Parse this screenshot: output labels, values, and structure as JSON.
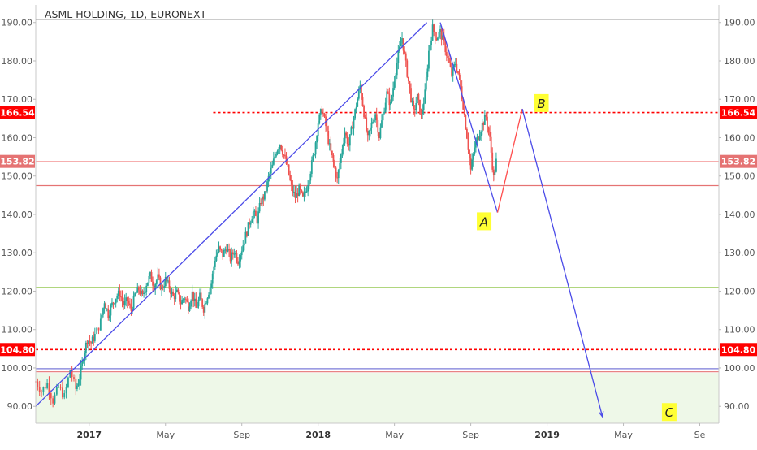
{
  "chart_data": {
    "type": "candlestick",
    "title": "ASML HOLDING, 1D, EURONEXT",
    "y_ticks": [
      90,
      100,
      110,
      120,
      130,
      140,
      150,
      160,
      170,
      180,
      190
    ],
    "y_tick_labels": [
      "90.00",
      "100.00",
      "110.00",
      "120.00",
      "130.00",
      "140.00",
      "150.00",
      "160.00",
      "170.00",
      "180.00",
      "190.00"
    ],
    "ylim": [
      85.6,
      194.6
    ],
    "x_ticks": [
      {
        "label": "2017",
        "t": 1.0,
        "bold": true
      },
      {
        "label": "May",
        "t": 5.0,
        "bold": false
      },
      {
        "label": "Sep",
        "t": 9.0,
        "bold": false
      },
      {
        "label": "2018",
        "t": 13.0,
        "bold": true
      },
      {
        "label": "May",
        "t": 17.0,
        "bold": false
      },
      {
        "label": "Sep",
        "t": 21.0,
        "bold": false
      },
      {
        "label": "2019",
        "t": 25.0,
        "bold": true
      },
      {
        "label": "May",
        "t": 29.0,
        "bold": false
      },
      {
        "label": "Se",
        "t": 33.0,
        "bold": false
      }
    ],
    "xlim": [
      -1.8,
      34.0
    ],
    "price_levels": [
      {
        "name": "level-166-54",
        "value": 166.54,
        "label": "166.54",
        "color": "#ff0000",
        "style": "dotted",
        "start_t": 7.5,
        "badge": "#ff0000"
      },
      {
        "name": "level-153-82",
        "value": 153.82,
        "label": "153.82",
        "color": "#f4a3a3",
        "style": "solid",
        "start_t": -1.8,
        "badge": "#e57373"
      },
      {
        "name": "level-147-5",
        "value": 147.5,
        "label": "",
        "color": "#e57373",
        "style": "solid",
        "start_t": -1.8,
        "badge": ""
      },
      {
        "name": "level-121",
        "value": 121.0,
        "label": "",
        "color": "#a5d16b",
        "style": "solid",
        "start_t": -1.8,
        "badge": ""
      },
      {
        "name": "level-104-80",
        "value": 104.8,
        "label": "104.80",
        "color": "#ff0000",
        "style": "dotted",
        "start_t": -1.8,
        "badge": "#ff0000"
      },
      {
        "name": "level-99-8",
        "value": 99.8,
        "label": "",
        "color": "#7b7bd8",
        "style": "solid",
        "start_t": -1.8,
        "badge": ""
      },
      {
        "name": "level-99-0",
        "value": 99.0,
        "label": "",
        "color": "#e57373",
        "style": "solid",
        "start_t": -1.8,
        "badge": ""
      }
    ],
    "support_zone": {
      "from": 85.6,
      "to": 98.7,
      "color": "#eef8e8"
    },
    "trendline": {
      "from": {
        "t": -1.8,
        "price": 90.0
      },
      "to": {
        "t": 18.7,
        "price": 190.0
      },
      "color": "#4b4be8"
    },
    "projection": [
      {
        "t": 19.4,
        "price": 190.0,
        "color": "#4b4be8"
      },
      {
        "t": 22.4,
        "price": 140.5,
        "color": "#4b4be8"
      },
      {
        "t": 23.7,
        "price": 167.5,
        "color": "#ff4d4d"
      },
      {
        "t": 27.9,
        "price": 87.3,
        "color": "#4b4be8",
        "arrow": true
      }
    ],
    "wave_labels": [
      {
        "text": "A",
        "t": 21.7,
        "price": 138.0
      },
      {
        "text": "B",
        "t": 24.7,
        "price": 168.8
      },
      {
        "text": "C",
        "t": 31.4,
        "price": 88.3
      }
    ],
    "candles": [
      {
        "t": -1.8,
        "price": 96.5
      },
      {
        "t": -1.5,
        "price": 94.0
      },
      {
        "t": -1.2,
        "price": 96.0
      },
      {
        "t": -0.9,
        "price": 91.5
      },
      {
        "t": -0.6,
        "price": 95.0
      },
      {
        "t": -0.3,
        "price": 92.5
      },
      {
        "t": 0.0,
        "price": 99.5
      },
      {
        "t": 0.3,
        "price": 94.5
      },
      {
        "t": 0.5,
        "price": 97.5
      },
      {
        "t": 0.7,
        "price": 103.0
      },
      {
        "t": 0.9,
        "price": 107.5
      },
      {
        "t": 1.1,
        "price": 106.5
      },
      {
        "t": 1.3,
        "price": 108.5
      },
      {
        "t": 1.6,
        "price": 112.0
      },
      {
        "t": 1.8,
        "price": 117.5
      },
      {
        "t": 2.0,
        "price": 114.0
      },
      {
        "t": 2.2,
        "price": 116.5
      },
      {
        "t": 2.4,
        "price": 118.5
      },
      {
        "t": 2.6,
        "price": 119.5
      },
      {
        "t": 2.8,
        "price": 116.5
      },
      {
        "t": 3.0,
        "price": 117.5
      },
      {
        "t": 3.2,
        "price": 115.0
      },
      {
        "t": 3.4,
        "price": 119.0
      },
      {
        "t": 3.6,
        "price": 120.5
      },
      {
        "t": 3.8,
        "price": 118.5
      },
      {
        "t": 4.0,
        "price": 122.0
      },
      {
        "t": 4.2,
        "price": 124.0
      },
      {
        "t": 4.4,
        "price": 121.5
      },
      {
        "t": 4.6,
        "price": 123.5
      },
      {
        "t": 4.8,
        "price": 120.5
      },
      {
        "t": 5.0,
        "price": 123.0
      },
      {
        "t": 5.2,
        "price": 121.0
      },
      {
        "t": 5.4,
        "price": 118.5
      },
      {
        "t": 5.6,
        "price": 119.5
      },
      {
        "t": 5.8,
        "price": 117.0
      },
      {
        "t": 6.0,
        "price": 118.5
      },
      {
        "t": 6.2,
        "price": 116.0
      },
      {
        "t": 6.4,
        "price": 119.5
      },
      {
        "t": 6.6,
        "price": 115.5
      },
      {
        "t": 6.8,
        "price": 118.5
      },
      {
        "t": 7.0,
        "price": 115.5
      },
      {
        "t": 7.2,
        "price": 119.0
      },
      {
        "t": 7.4,
        "price": 122.0
      },
      {
        "t": 7.6,
        "price": 128.5
      },
      {
        "t": 7.8,
        "price": 131.0
      },
      {
        "t": 8.0,
        "price": 129.5
      },
      {
        "t": 8.2,
        "price": 131.5
      },
      {
        "t": 8.4,
        "price": 128.5
      },
      {
        "t": 8.6,
        "price": 130.5
      },
      {
        "t": 8.8,
        "price": 128.0
      },
      {
        "t": 9.0,
        "price": 131.0
      },
      {
        "t": 9.2,
        "price": 134.5
      },
      {
        "t": 9.4,
        "price": 138.0
      },
      {
        "t": 9.6,
        "price": 140.5
      },
      {
        "t": 9.8,
        "price": 138.5
      },
      {
        "t": 10.0,
        "price": 143.5
      },
      {
        "t": 10.2,
        "price": 145.0
      },
      {
        "t": 10.4,
        "price": 149.5
      },
      {
        "t": 10.6,
        "price": 152.5
      },
      {
        "t": 10.8,
        "price": 156.5
      },
      {
        "t": 11.0,
        "price": 158.5
      },
      {
        "t": 11.2,
        "price": 155.5
      },
      {
        "t": 11.4,
        "price": 152.0
      },
      {
        "t": 11.6,
        "price": 147.0
      },
      {
        "t": 11.8,
        "price": 144.5
      },
      {
        "t": 12.0,
        "price": 146.5
      },
      {
        "t": 12.2,
        "price": 144.0
      },
      {
        "t": 12.4,
        "price": 147.0
      },
      {
        "t": 12.6,
        "price": 151.5
      },
      {
        "t": 12.8,
        "price": 156.5
      },
      {
        "t": 13.0,
        "price": 164.0
      },
      {
        "t": 13.2,
        "price": 167.5
      },
      {
        "t": 13.4,
        "price": 163.0
      },
      {
        "t": 13.6,
        "price": 157.5
      },
      {
        "t": 13.8,
        "price": 153.5
      },
      {
        "t": 14.0,
        "price": 149.0
      },
      {
        "t": 14.2,
        "price": 155.5
      },
      {
        "t": 14.4,
        "price": 161.5
      },
      {
        "t": 14.6,
        "price": 158.0
      },
      {
        "t": 14.8,
        "price": 163.5
      },
      {
        "t": 15.0,
        "price": 168.5
      },
      {
        "t": 15.2,
        "price": 173.5
      },
      {
        "t": 15.4,
        "price": 166.5
      },
      {
        "t": 15.6,
        "price": 159.5
      },
      {
        "t": 15.8,
        "price": 163.5
      },
      {
        "t": 16.0,
        "price": 166.5
      },
      {
        "t": 16.2,
        "price": 160.5
      },
      {
        "t": 16.4,
        "price": 166.0
      },
      {
        "t": 16.6,
        "price": 171.5
      },
      {
        "t": 16.8,
        "price": 168.5
      },
      {
        "t": 17.0,
        "price": 175.5
      },
      {
        "t": 17.2,
        "price": 181.5
      },
      {
        "t": 17.4,
        "price": 186.0
      },
      {
        "t": 17.6,
        "price": 179.0
      },
      {
        "t": 17.8,
        "price": 172.5
      },
      {
        "t": 18.0,
        "price": 166.5
      },
      {
        "t": 18.2,
        "price": 170.5
      },
      {
        "t": 18.4,
        "price": 165.5
      },
      {
        "t": 18.6,
        "price": 171.5
      },
      {
        "t": 18.8,
        "price": 182.5
      },
      {
        "t": 19.0,
        "price": 188.5
      },
      {
        "t": 19.2,
        "price": 186.0
      },
      {
        "t": 19.4,
        "price": 187.5
      },
      {
        "t": 19.6,
        "price": 184.5
      },
      {
        "t": 19.8,
        "price": 180.5
      },
      {
        "t": 20.0,
        "price": 176.5
      },
      {
        "t": 20.2,
        "price": 179.5
      },
      {
        "t": 20.4,
        "price": 175.5
      },
      {
        "t": 20.6,
        "price": 168.5
      },
      {
        "t": 20.8,
        "price": 160.5
      },
      {
        "t": 21.0,
        "price": 151.5
      },
      {
        "t": 21.2,
        "price": 157.5
      },
      {
        "t": 21.4,
        "price": 160.5
      },
      {
        "t": 21.6,
        "price": 163.5
      },
      {
        "t": 21.8,
        "price": 165.5
      },
      {
        "t": 22.0,
        "price": 159.5
      },
      {
        "t": 22.2,
        "price": 149.5
      },
      {
        "t": 22.4,
        "price": 156.0
      }
    ]
  }
}
